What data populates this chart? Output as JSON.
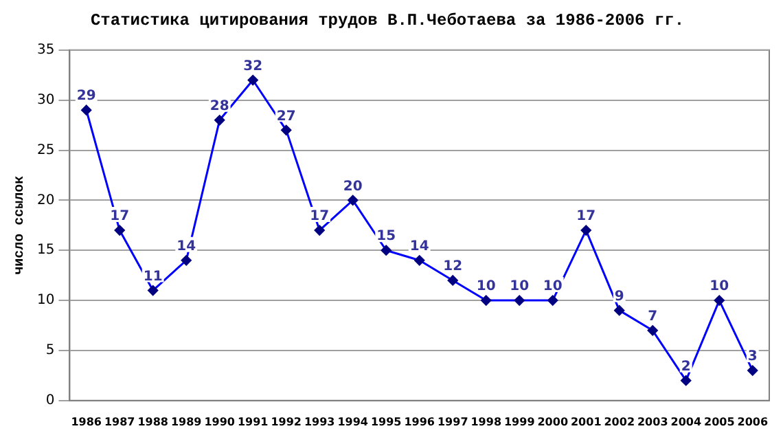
{
  "chart_data": {
    "type": "line",
    "title": "Статистика цитирования трудов В.П.Чеботаева за 1986-2006 гг.",
    "ylabel": "число ссылок",
    "categories": [
      "1986",
      "1987",
      "1988",
      "1989",
      "1990",
      "1991",
      "1992",
      "1993",
      "1994",
      "1995",
      "1996",
      "1997",
      "1998",
      "1999",
      "2000",
      "2001",
      "2002",
      "2003",
      "2004",
      "2005",
      "2006"
    ],
    "series": [
      {
        "color": "#0000ff",
        "values": [
          29,
          17,
          11,
          14,
          28,
          32,
          27,
          17,
          20,
          15,
          14,
          12,
          10,
          10,
          10,
          17,
          9,
          7,
          2,
          10,
          3
        ]
      }
    ],
    "ylim": [
      0,
      35
    ],
    "yticks": [
      0,
      5,
      10,
      15,
      20,
      25,
      30,
      35
    ],
    "grid": "y",
    "legend": false,
    "marker": "diamond",
    "line_style": "solid",
    "data_labels": true
  }
}
